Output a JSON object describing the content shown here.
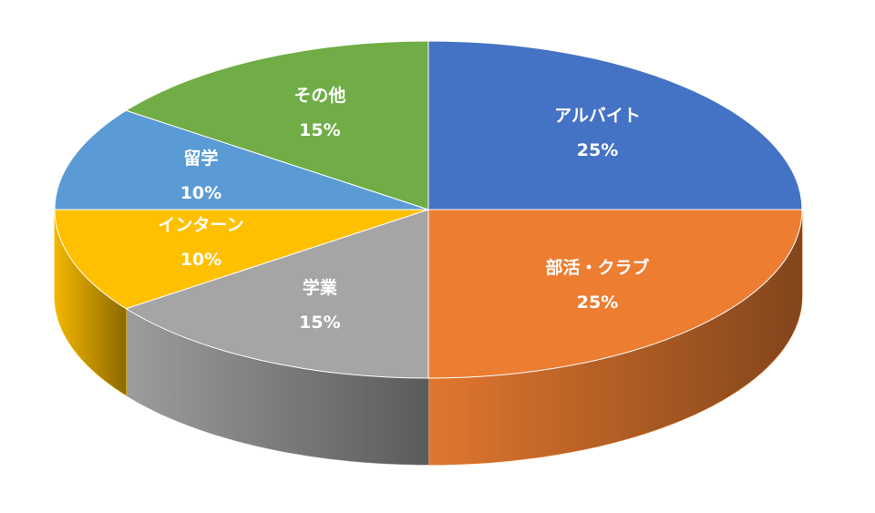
{
  "chart_data": {
    "type": "pie3d",
    "categories": [
      "アルバイト",
      "部活・クラブ",
      "学業",
      "インターン",
      "留学",
      "その他"
    ],
    "values": [
      25,
      25,
      15,
      10,
      10,
      15
    ],
    "value_labels": [
      "25%",
      "25%",
      "15%",
      "10%",
      "10%",
      "15%"
    ],
    "colors": [
      "#4472c4",
      "#ed7d31",
      "#a5a5a5",
      "#ffc000",
      "#5b9bd5",
      "#70ad47"
    ]
  }
}
